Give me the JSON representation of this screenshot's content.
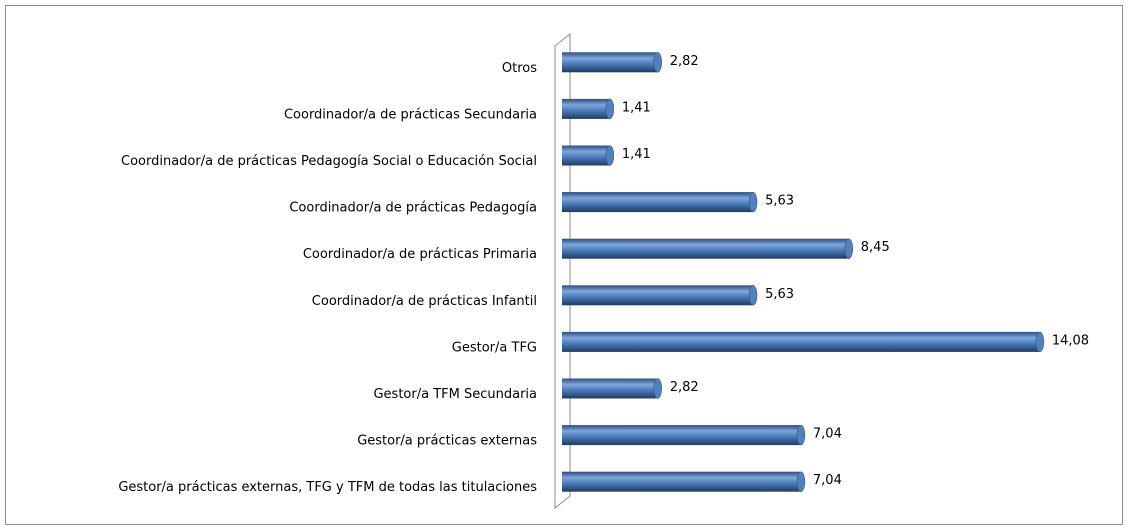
{
  "chart_data": {
    "type": "hbar",
    "categories": [
      "Otros",
      "Coordinador/a de prácticas Secundaria",
      "Coordinador/a de prácticas Pedagogía Social o Educación Social",
      "Coordinador/a de prácticas Pedagogía",
      "Coordinador/a de prácticas Primaria",
      "Coordinador/a de prácticas Infantil",
      "Gestor/a TFG",
      "Gestor/a TFM Secundaria",
      "Gestor/a prácticas externas",
      "Gestor/a prácticas externas, TFG y TFM de todas las titulaciones"
    ],
    "values": [
      2.82,
      1.41,
      1.41,
      5.63,
      8.45,
      5.63,
      14.08,
      2.82,
      7.04,
      7.04
    ],
    "value_labels": [
      "2,82",
      "1,41",
      "1,41",
      "5,63",
      "8,45",
      "5,63",
      "14,08",
      "2,82",
      "7,04",
      "7,04"
    ],
    "color": "#4f81bd",
    "xlim": [
      0,
      16
    ]
  }
}
